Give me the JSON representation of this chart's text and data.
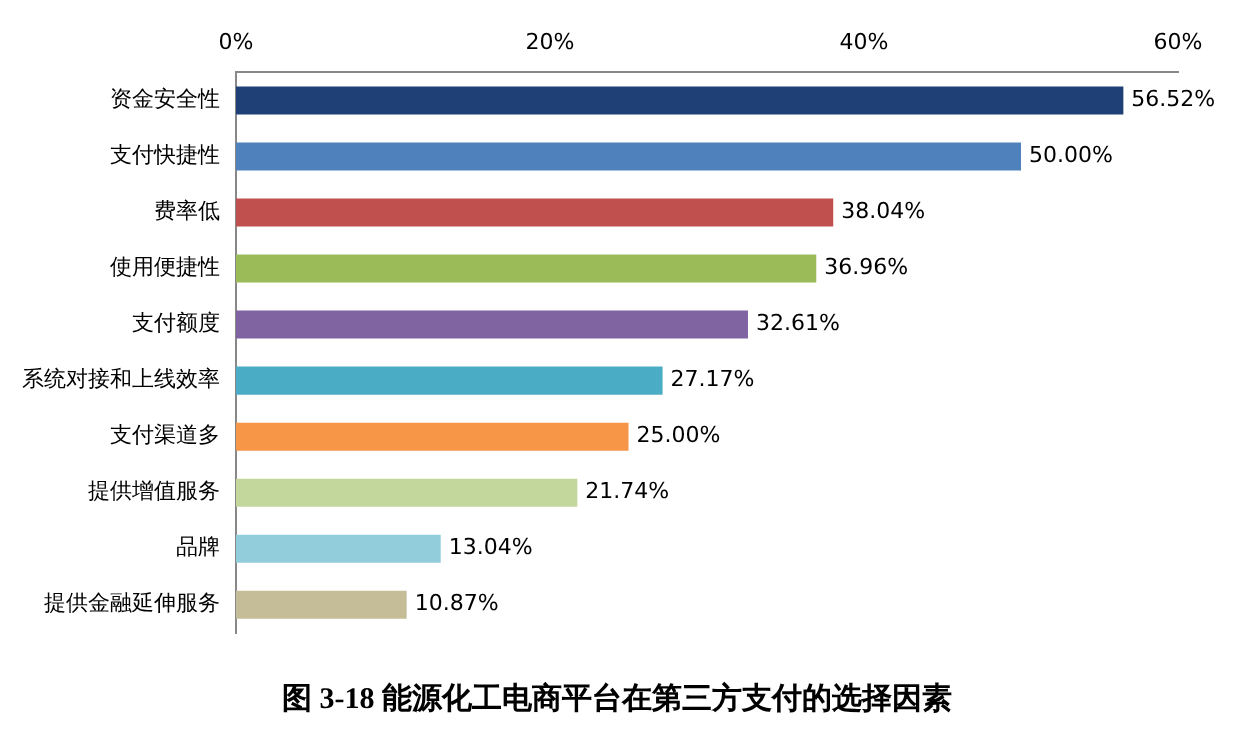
{
  "chart_data": {
    "type": "bar",
    "orientation": "horizontal",
    "title": "图 3-18 能源化工电商平台在第三方支付的选择因素",
    "categories": [
      "资金安全性",
      "支付快捷性",
      "费率低",
      "使用便捷性",
      "支付额度",
      "系统对接和上线效率",
      "支付渠道多",
      "提供增值服务",
      "品牌",
      "提供金融延伸服务"
    ],
    "values": [
      56.52,
      50.0,
      38.04,
      36.96,
      32.61,
      27.17,
      25.0,
      21.74,
      13.04,
      10.87
    ],
    "colors": [
      "#1f3f77",
      "#4f81bd",
      "#c0504d",
      "#9bbb59",
      "#8064a2",
      "#4bacc6",
      "#f79646",
      "#c3d69b",
      "#92cddc",
      "#c4bd97"
    ],
    "value_labels": [
      "56.52%",
      "50.00%",
      "38.04%",
      "36.96%",
      "32.61%",
      "27.17%",
      "25.00%",
      "21.74%",
      "13.04%",
      "10.87%"
    ],
    "xlim": [
      0,
      60
    ],
    "xticks": [
      {
        "value": 0,
        "label": "0%"
      },
      {
        "value": 20,
        "label": "20%"
      },
      {
        "value": 40,
        "label": "40%"
      },
      {
        "value": 60,
        "label": "60%"
      }
    ],
    "grid": false,
    "legend": false
  }
}
